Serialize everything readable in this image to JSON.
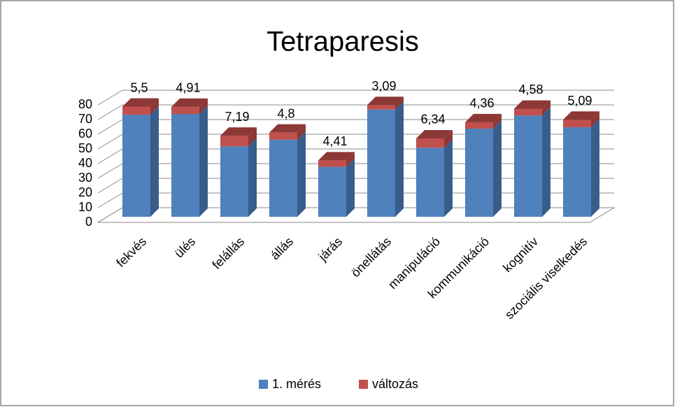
{
  "chart_data": {
    "type": "bar3d_stacked",
    "title": "Tetraparesis",
    "categories": [
      "fekvés",
      "ülés",
      "felállás",
      "állás",
      "járás",
      "önellátás",
      "manipuláció",
      "kommunikáció",
      "kognitív",
      "szociális viselkedés"
    ],
    "series": [
      {
        "name": "1. mérés",
        "color": "#4f81bd",
        "side": "#385d8a",
        "values": [
          69.5,
          70,
          48,
          52.5,
          34,
          73,
          47,
          60,
          69,
          61
        ]
      },
      {
        "name": "változás",
        "color": "#c0504d",
        "side": "#8c3836",
        "values": [
          5.5,
          4.91,
          7.19,
          4.8,
          4.41,
          3.09,
          6.34,
          4.36,
          4.58,
          5.09
        ],
        "value_labels": [
          "5,5",
          "4,91",
          "7,19",
          "4,8",
          "4,41",
          "3,09",
          "6,34",
          "4,36",
          "4,58",
          "5,09"
        ]
      }
    ],
    "ylim": [
      0,
      80
    ],
    "yticks": [
      0,
      10,
      20,
      30,
      40,
      50,
      60,
      70,
      80
    ],
    "grid": true,
    "legend": "bottom"
  }
}
